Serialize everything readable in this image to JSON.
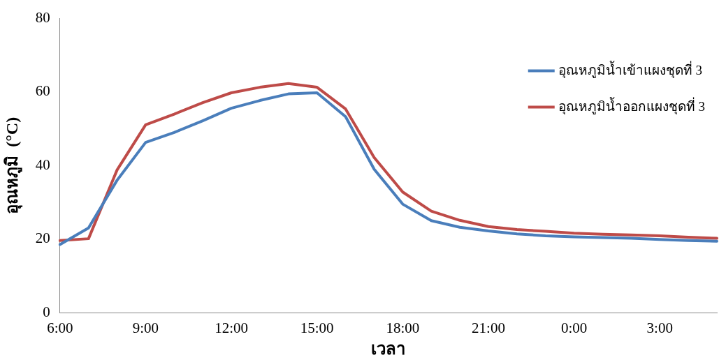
{
  "chart_data": {
    "type": "line",
    "xlabel": "เวลา",
    "ylabel": "อุณหภูมิ  (°C)",
    "categories": [
      "6:00",
      null,
      null,
      "9:00",
      null,
      null,
      "12:00",
      null,
      null,
      "15:00",
      null,
      null,
      "18:00",
      null,
      null,
      "21:00",
      null,
      null,
      "0:00",
      null,
      null,
      "3:00",
      null,
      null
    ],
    "series": [
      {
        "name": "อุณหภูมิน้ำเข้าแผงชุดที่ 3",
        "color": "#4a7ebb",
        "values": [
          18.5,
          23,
          36,
          46.3,
          49,
          52.2,
          55.6,
          57.7,
          59.5,
          59.8,
          53.3,
          39,
          29.5,
          25,
          23.2,
          22.2,
          21.4,
          20.9,
          20.6,
          20.4,
          20.2,
          19.9,
          19.6,
          19.4
        ]
      },
      {
        "name": "อุณหภูมิน้ำออกแผงชุดที่ 3",
        "color": "#be4b48",
        "values": [
          19.6,
          20.1,
          38.8,
          51.1,
          54,
          57.1,
          59.8,
          61.3,
          62.3,
          61.3,
          55.4,
          42.2,
          32.8,
          27.6,
          25.1,
          23.4,
          22.6,
          22.1,
          21.6,
          21.3,
          21.1,
          20.9,
          20.5,
          20.2
        ]
      }
    ],
    "ylim": [
      0,
      80
    ],
    "yticks": [
      0,
      20,
      40,
      60,
      80
    ],
    "grid": false,
    "legend": "top right",
    "marker": "none",
    "line_style": "solid"
  }
}
